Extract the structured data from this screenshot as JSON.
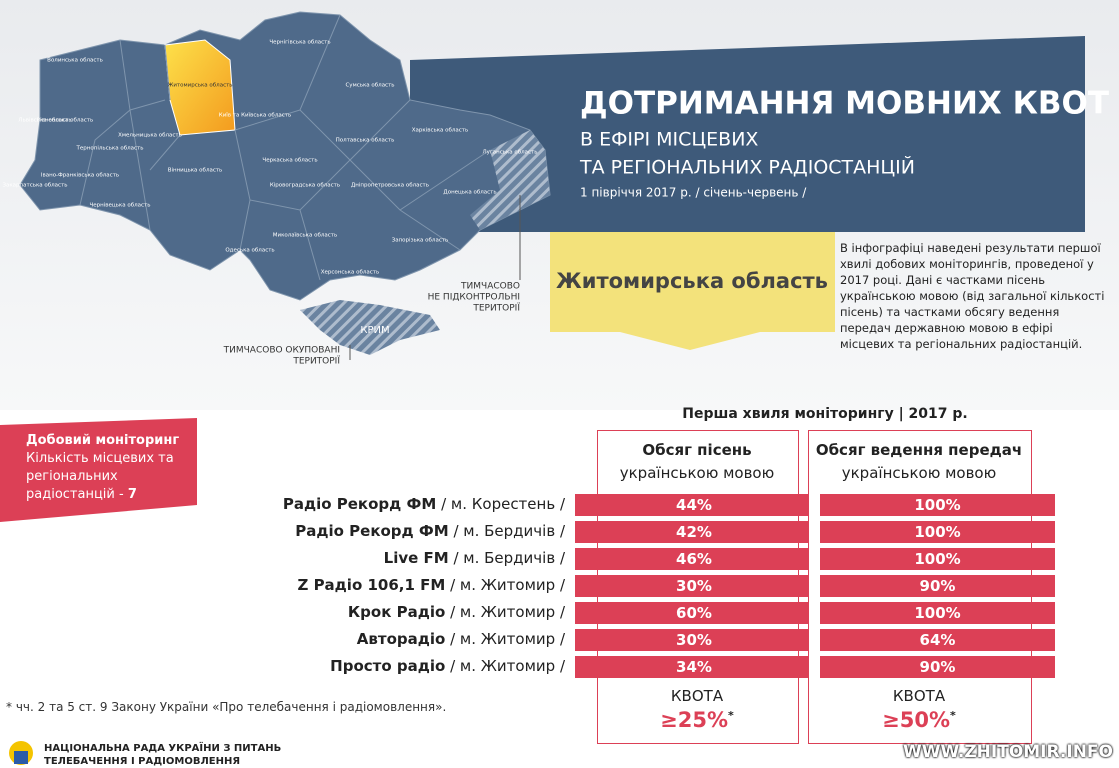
{
  "header": {
    "title": "ДОТРИМАННЯ МОВНИХ КВОТ",
    "subtitle_lines": [
      "В ЕФІРІ МІСЦЕВИХ",
      "ТА РЕГІОНАЛЬНИХ РАДІОСТАНЦІЙ"
    ],
    "period": "1 півріччя 2017 р. / січень-червень /"
  },
  "map": {
    "regions": [
      "Волинська область",
      "Рівненська область",
      "Житомирська область",
      "Київ та Київська область",
      "Чернігівська область",
      "Сумська область",
      "Харківська область",
      "Полтавська область",
      "Черкаська область",
      "Кіровоградська область",
      "Дніпропетровська область",
      "Луганська область",
      "Донецька область",
      "Запорізька область",
      "Херсонська область",
      "Миколаївська область",
      "Одеська область",
      "Вінницька область",
      "Хмельницька область",
      "Тернопільська область",
      "Львівська область",
      "Закарпатська область",
      "Івано-Франківська область",
      "Чернівецька область"
    ],
    "uncontrolled_label": [
      "ТИМЧАСОВО",
      "НЕ ПІДКОНТРОЛЬНІ",
      "ТЕРИТОРІЇ"
    ],
    "crimea_label": "КРИМ",
    "occupied_label": [
      "ТИМЧАСОВО ОКУПОВАНІ",
      "ТЕРИТОРІЇ"
    ]
  },
  "region_title": "Житомирська область",
  "description": "В інфографіці наведені результати першої хвилі добових моніторингів, проведеної у 2017 році. Дані є частками пісень українською мовою (від загальної кількості пісень) та частками обсягу ведення передач державною мовою в ефірі місцевих та регіональних радіостанцій.",
  "monitoring_box": {
    "title": "Добовий моніторинг",
    "text": "Кількість місцевих та регіональних радіостанцій - ",
    "count": "7"
  },
  "table": {
    "title": "Перша хвиля моніторингу | 2017 р.",
    "columns": [
      {
        "title": "Обсяг пісень",
        "subtitle": "українською мовою",
        "quota_label": "КВОТА",
        "quota": "≥25%",
        "quota_mark": "*"
      },
      {
        "title": "Обсяг ведення передач",
        "subtitle": "українською мовою",
        "quota_label": "КВОТА",
        "quota": "≥50%",
        "quota_mark": "*"
      }
    ],
    "rows": [
      {
        "name": "Радіо Рекорд ФМ",
        "city": "/ м. Корестень /",
        "values": [
          "44%",
          "100%"
        ]
      },
      {
        "name": "Радіо Рекорд ФМ",
        "city": "/ м. Бердичів /",
        "values": [
          "42%",
          "100%"
        ]
      },
      {
        "name": "Live FM",
        "city": "/ м. Бердичів /",
        "values": [
          "46%",
          "100%"
        ]
      },
      {
        "name": "Z Радіо 106,1 FM",
        "city": "/ м. Житомир /",
        "values": [
          "30%",
          "90%"
        ]
      },
      {
        "name": "Крок Радіо",
        "city": "/ м. Житомир /",
        "values": [
          "60%",
          "100%"
        ]
      },
      {
        "name": "Авторадіо",
        "city": "/ м. Житомир /",
        "values": [
          "30%",
          "64%"
        ]
      },
      {
        "name": "Просто радіо",
        "city": "/ м. Житомир /",
        "values": [
          "34%",
          "90%"
        ]
      }
    ]
  },
  "footnote": "* чч. 2 та 5 ст. 9 Закону України «Про телебачення і радіомовлення».",
  "footer": {
    "org_lines": [
      "НАЦІОНАЛЬНА РАДА УКРАЇНИ З ПИТАНЬ",
      "ТЕЛЕБАЧЕННЯ І РАДІОМОВЛЕННЯ"
    ],
    "watermark": "WWW.ZHITOMIR.INFO"
  }
}
